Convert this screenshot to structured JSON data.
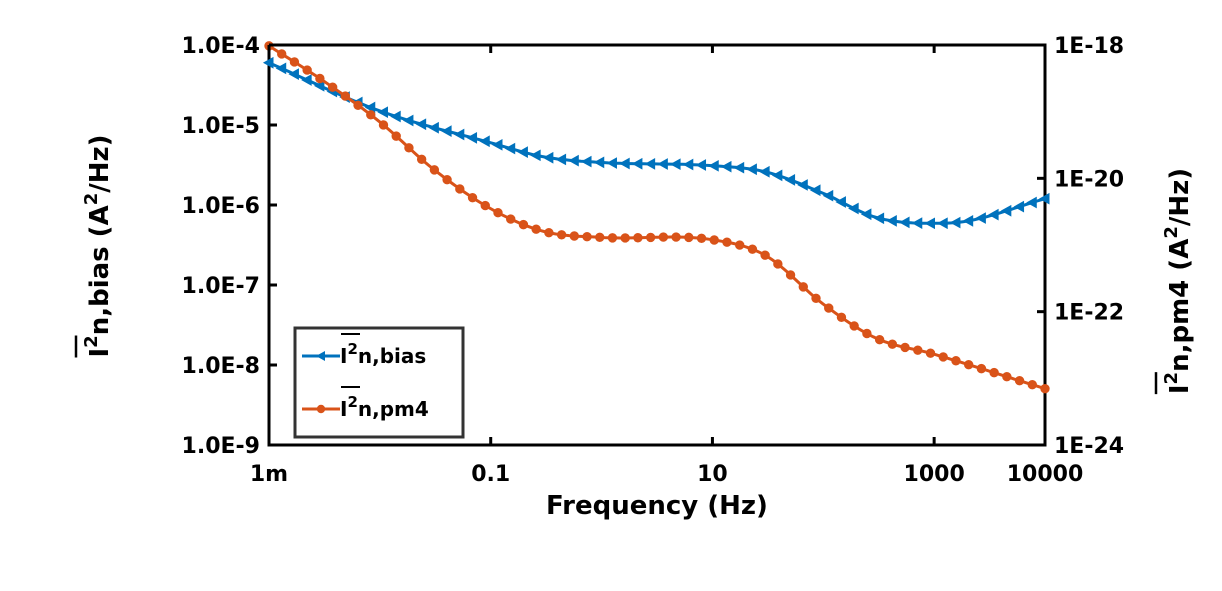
{
  "chart_data": {
    "type": "line",
    "xlabel": "Frequency  (Hz)",
    "xscale": "log",
    "xlim": [
      0.001,
      10000
    ],
    "xticks": [
      {
        "value": 0.001,
        "label": "1m"
      },
      {
        "value": 0.1,
        "label": "0.1"
      },
      {
        "value": 10,
        "label": "10"
      },
      {
        "value": 1000,
        "label": "1000"
      },
      {
        "value": 10000,
        "label": "10000"
      }
    ],
    "ylabel_left": {
      "base": "I",
      "sup": "2",
      "rest": "n,bias (A",
      "unit_sup": "2",
      "tail": "/Hz)"
    },
    "ylabel_right": {
      "base": "I",
      "sup": "2",
      "rest": "n,pm4 (A",
      "unit_sup": "2",
      "tail": "/Hz)"
    },
    "yscale_left": "log",
    "ylim_left": [
      1e-09,
      0.0001
    ],
    "yticks_left": [
      {
        "value": 0.0001,
        "label": "1.0E-4"
      },
      {
        "value": 1e-05,
        "label": "1.0E-5"
      },
      {
        "value": 1e-06,
        "label": "1.0E-6"
      },
      {
        "value": 1e-07,
        "label": "1.0E-7"
      },
      {
        "value": 1e-08,
        "label": "1.0E-8"
      },
      {
        "value": 1e-09,
        "label": "1.0E-9"
      }
    ],
    "yscale_right": "log",
    "ylim_right": [
      1e-24,
      1e-18
    ],
    "yticks_right": [
      {
        "value": 1e-18,
        "label": "1E-18"
      },
      {
        "value": 1e-20,
        "label": "1E-20"
      },
      {
        "value": 1e-22,
        "label": "1E-22"
      },
      {
        "value": 1e-24,
        "label": "1E-24"
      }
    ],
    "legend": {
      "placement": "bottom-left"
    },
    "series": [
      {
        "name": "n,bias",
        "legend_base": "I",
        "legend_sup": "2",
        "axis": "left",
        "color": "#0072BD",
        "marker": "left-triangle",
        "x": [
          0.001,
          0.01,
          0.1,
          0.3,
          1,
          10,
          30,
          100,
          300,
          1000,
          2000,
          10000
        ],
        "y": [
          6e-05,
          1.5e-05,
          6e-06,
          4e-06,
          3.4e-06,
          3.1e-06,
          2.6e-06,
          1.4e-06,
          7e-07,
          5.9e-07,
          6.3e-07,
          1.2e-06
        ]
      },
      {
        "name": "n,pm4",
        "legend_base": "I",
        "legend_sup": "2",
        "axis": "right",
        "color": "#D95319",
        "marker": "star",
        "x": [
          0.001,
          0.003,
          0.01,
          0.03,
          0.1,
          0.3,
          1,
          10,
          30,
          100,
          300,
          1000,
          10000
        ],
        "y": [
          9.7e-19,
          3e-19,
          7e-20,
          1.4e-20,
          3.5e-21,
          1.6e-21,
          1.3e-21,
          1.2e-21,
          7e-22,
          1.3e-22,
          4e-23,
          2.3e-23,
          7e-24
        ]
      }
    ]
  }
}
